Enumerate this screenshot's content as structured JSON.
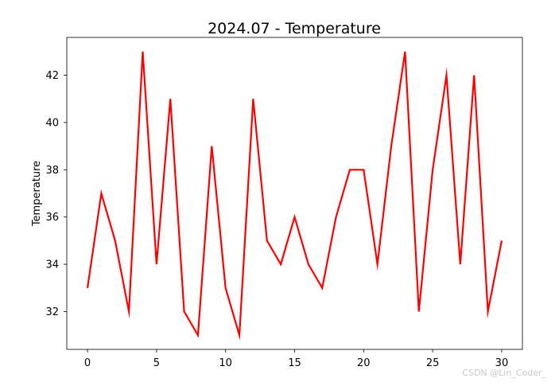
{
  "chart_data": {
    "type": "line",
    "title": "2024.07 - Temperature",
    "xlabel": "",
    "ylabel": "Temperature",
    "x": [
      0,
      1,
      2,
      3,
      4,
      5,
      6,
      7,
      8,
      9,
      10,
      11,
      12,
      13,
      14,
      15,
      16,
      17,
      18,
      19,
      20,
      21,
      22,
      23,
      24,
      25,
      26,
      27,
      28,
      29,
      30
    ],
    "series": [
      {
        "color": "#ff0000",
        "values": [
          33,
          37,
          35,
          32,
          43,
          34,
          41,
          32,
          31,
          39,
          33,
          31,
          41,
          35,
          34,
          36,
          34,
          33,
          36,
          38,
          38,
          34,
          39,
          43,
          32,
          38,
          42,
          34,
          42,
          32,
          35
        ]
      }
    ],
    "xlim": [
      -1.5,
      31.5
    ],
    "ylim": [
      30.4,
      43.6
    ],
    "xticks": [
      0,
      5,
      10,
      15,
      20,
      25,
      30
    ],
    "yticks": [
      32,
      34,
      36,
      38,
      40,
      42
    ],
    "grid": false,
    "legend": "none"
  },
  "watermark": "CSDN @Lin_Coder_"
}
